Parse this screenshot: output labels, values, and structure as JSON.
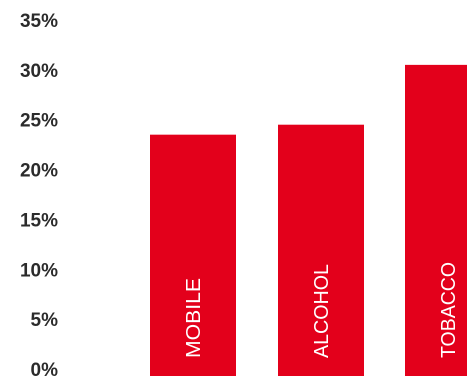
{
  "chart_data": {
    "type": "bar",
    "categories": [
      "MOBILE",
      "ALCOHOL",
      "TOBACCO"
    ],
    "values": [
      23.5,
      24.5,
      30.5
    ],
    "ylim": [
      0,
      35
    ],
    "yticks": [
      "0%",
      "5%",
      "10%",
      "15%",
      "20%",
      "25%",
      "30%",
      "35%"
    ],
    "ytick_values": [
      0,
      5,
      10,
      15,
      20,
      25,
      30,
      35
    ],
    "bar_color": "#e3001b",
    "label_color": "#ffffff",
    "tick_color": "#2b2b2b",
    "grid": false,
    "legend": "none"
  }
}
